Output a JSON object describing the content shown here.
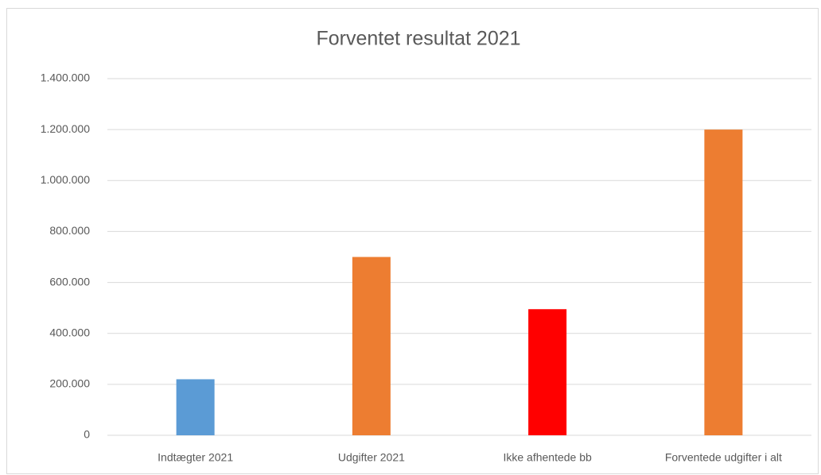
{
  "chart_data": {
    "type": "bar",
    "title": "Forventet resultat 2021",
    "categories": [
      "Indtægter 2021",
      "Udgifter 2021",
      "Ikke afhentede bb",
      "Forventede udgifter i alt"
    ],
    "values": [
      220000,
      700000,
      495000,
      1200000
    ],
    "colors": [
      "#5b9bd5",
      "#ed7d31",
      "#ff0000",
      "#ed7d31"
    ],
    "ylim": [
      0,
      1400000
    ],
    "yticks": [
      0,
      {
        "value": 200000,
        "label": "200.000"
      },
      {
        "value": 400000,
        "label": "400.000"
      },
      {
        "value": 600000,
        "label": "600.000"
      },
      {
        "value": 800000,
        "label": "800.000"
      },
      {
        "value": 1000000,
        "label": "1.000.000"
      },
      {
        "value": 1200000,
        "label": "1.200.000"
      },
      {
        "value": 1400000,
        "label": "1.400.000"
      }
    ],
    "grid": true
  }
}
